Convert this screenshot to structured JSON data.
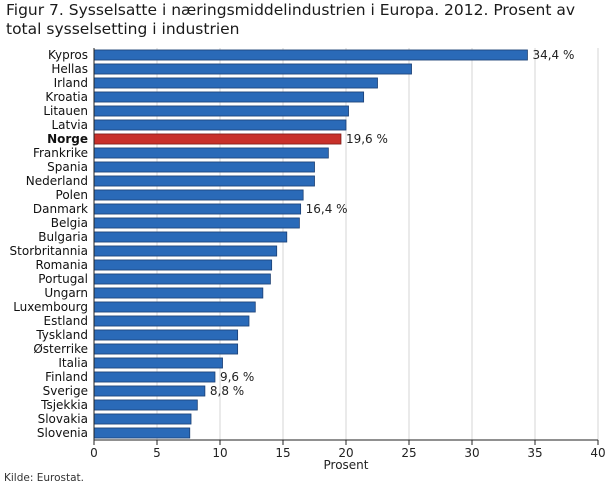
{
  "chart_data": {
    "type": "bar",
    "orientation": "horizontal",
    "title": "Figur 7. Sysselsatte i næringsmiddelindustrien i Europa. 2012. Prosent av total sysselsetting i industrien",
    "xlabel": "Prosent",
    "ylabel": "",
    "xlim": [
      0,
      40
    ],
    "xticks": [
      0,
      5,
      10,
      15,
      20,
      25,
      30,
      35,
      40
    ],
    "grid": "vertical",
    "highlight": "Norge",
    "colors": {
      "bar": "#2a6ab8",
      "bar_edge": "#1b3f73",
      "highlight": "#c8302a",
      "grid": "#d6d6d6",
      "axis": "#222222"
    },
    "categories": [
      "Kypros",
      "Hellas",
      "Irland",
      "Kroatia",
      "Litauen",
      "Latvia",
      "Norge",
      "Frankrike",
      "Spania",
      "Nederland",
      "Polen",
      "Danmark",
      "Belgia",
      "Bulgaria",
      "Storbritannia",
      "Romania",
      "Portugal",
      "Ungarn",
      "Luxembourg",
      "Estland",
      "Tyskland",
      "Østerrike",
      "Italia",
      "Finland",
      "Sverige",
      "Tsjekkia",
      "Slovakia",
      "Slovenia"
    ],
    "values": [
      34.4,
      25.2,
      22.5,
      21.4,
      20.2,
      20.0,
      19.6,
      18.6,
      17.5,
      17.5,
      16.6,
      16.4,
      16.3,
      15.3,
      14.5,
      14.1,
      14.0,
      13.4,
      12.8,
      12.3,
      11.4,
      11.4,
      10.2,
      9.6,
      8.8,
      8.2,
      7.7,
      7.6
    ],
    "data_labels": {
      "Kypros": "34,4 %",
      "Norge": "19,6 %",
      "Danmark": "16,4 %",
      "Finland": "9,6 %",
      "Sverige": "8,8 %"
    }
  },
  "source": "Kilde: Eurostat."
}
